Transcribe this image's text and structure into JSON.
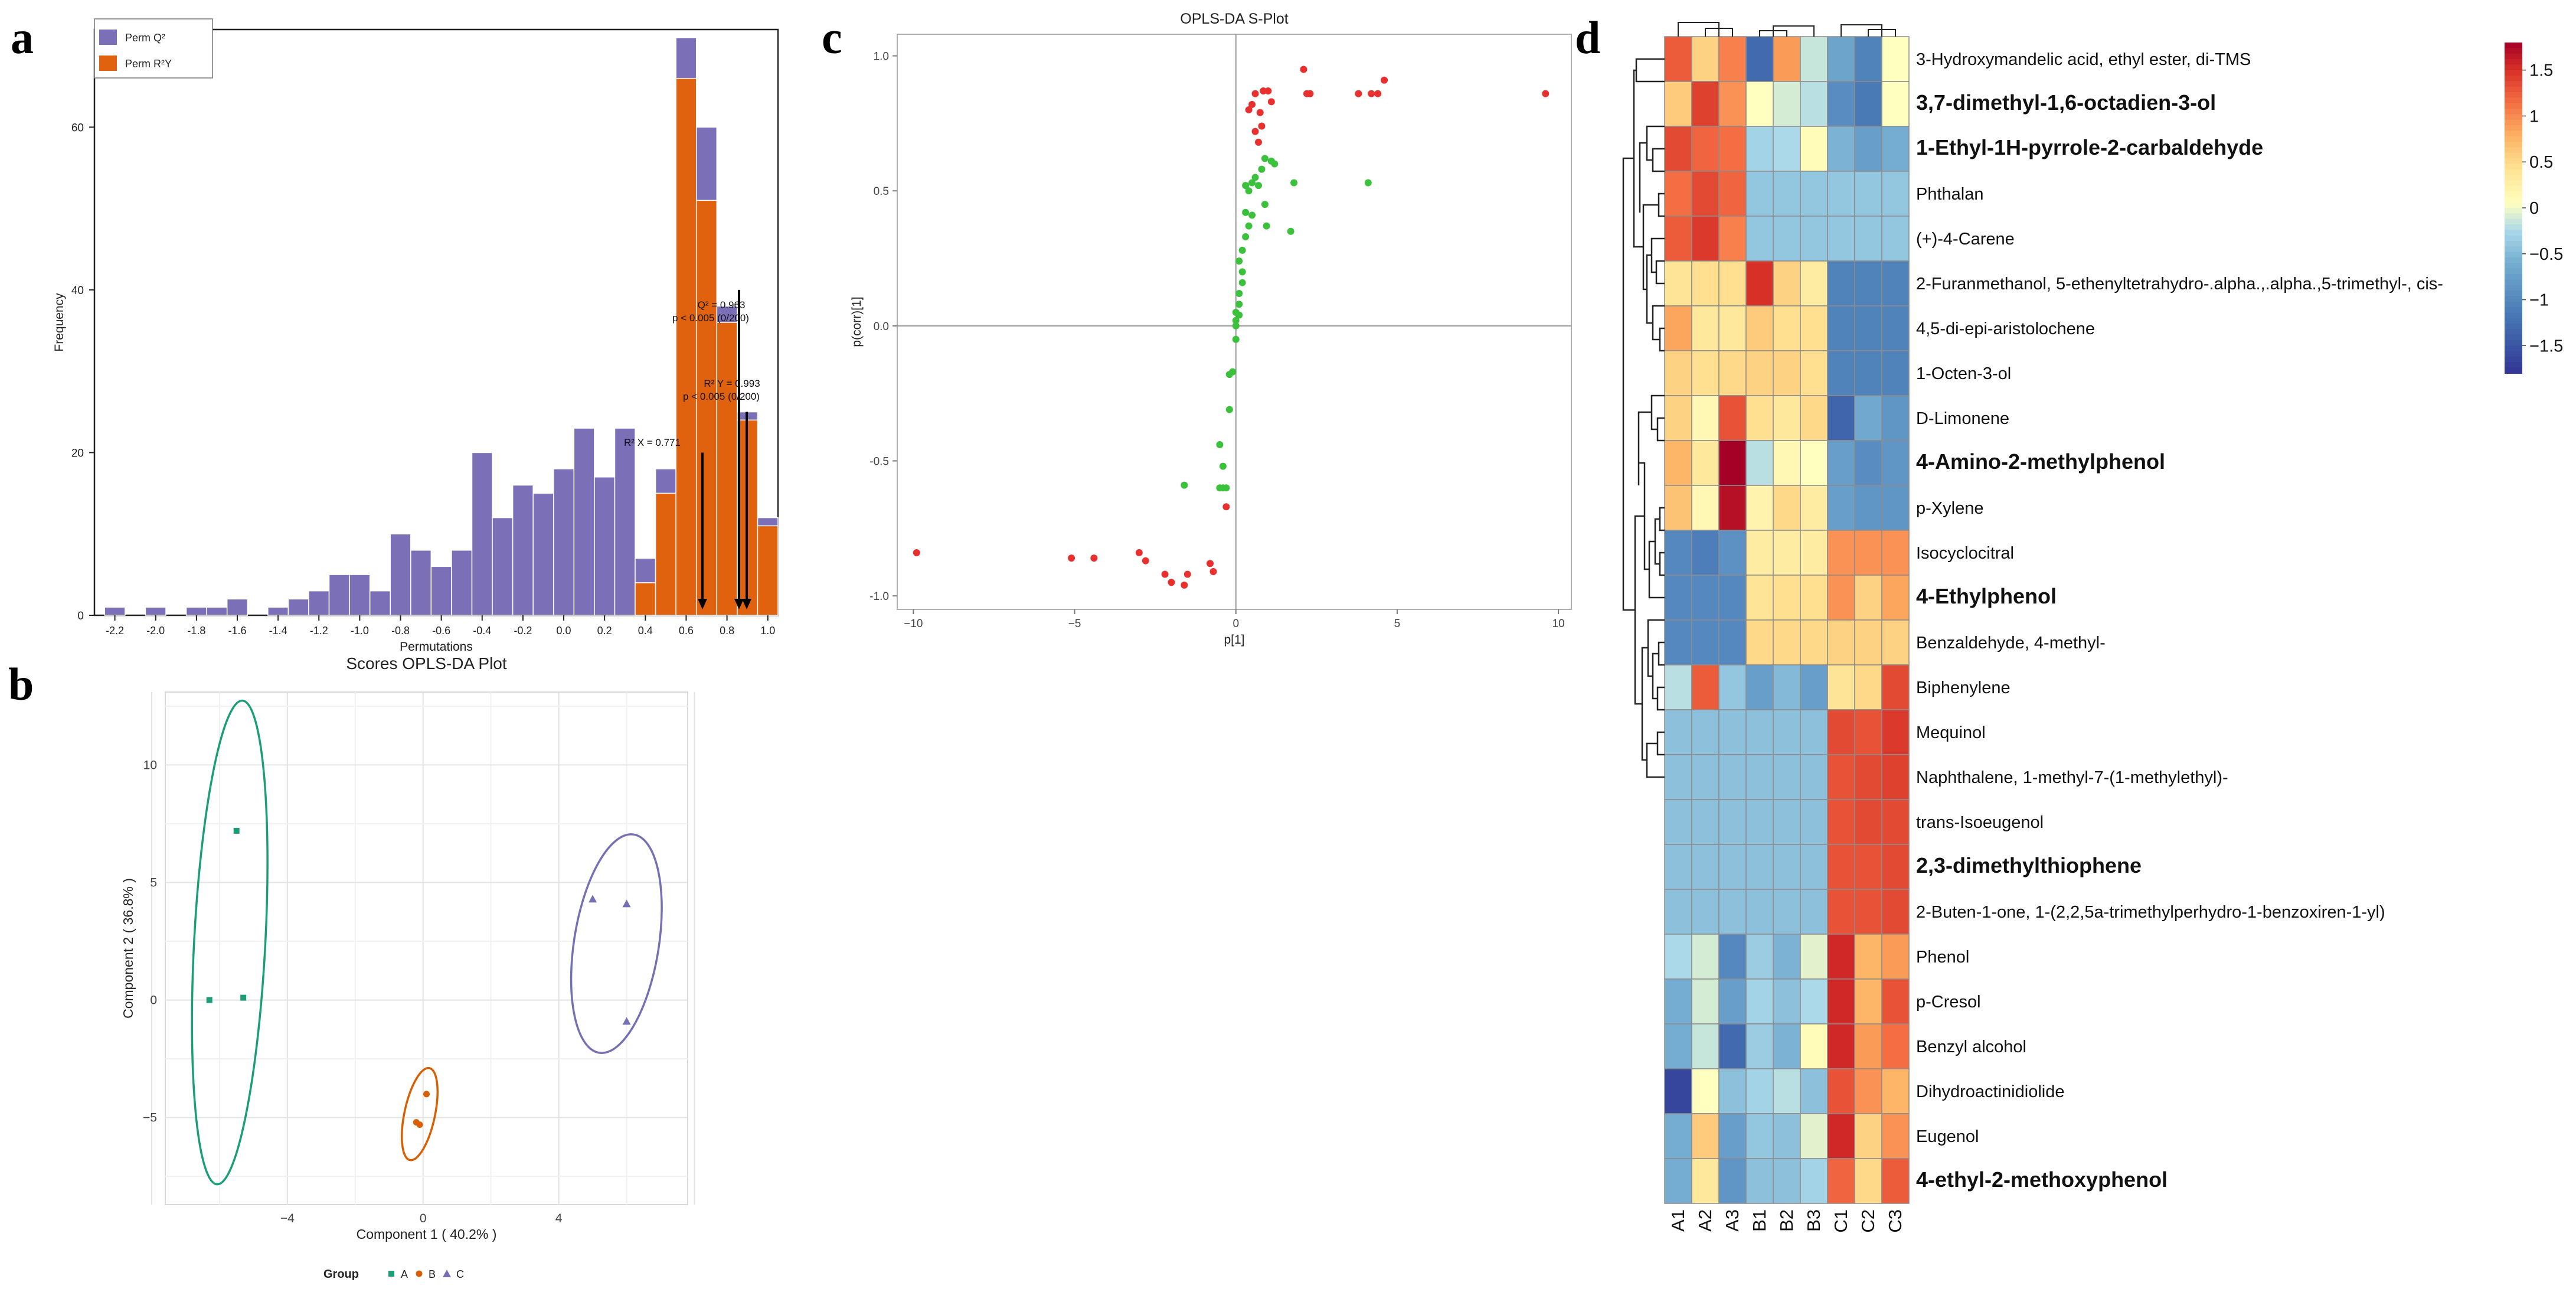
{
  "panels": {
    "a": "a",
    "b": "b",
    "c": "c",
    "d": "d"
  },
  "chart_data": [
    {
      "id": "a",
      "type": "bar",
      "subtype": "histogram",
      "xlabel": "Permutations",
      "ylabel": "Frequency",
      "xlim": [
        -2.3,
        1.05
      ],
      "ylim": [
        0,
        72
      ],
      "xticks": [
        "-2.2",
        "-2.0",
        "-1.8",
        "-1.6",
        "-1.4",
        "-1.2",
        "-1.0",
        "-0.8",
        "-0.6",
        "-0.4",
        "-0.2",
        "0.0",
        "0.2",
        "0.4",
        "0.6",
        "0.8",
        "1.0"
      ],
      "xtick_values": [
        -2.2,
        -2.0,
        -1.8,
        -1.6,
        -1.4,
        -1.2,
        -1.0,
        -0.8,
        -0.6,
        -0.4,
        -0.2,
        0.0,
        0.2,
        0.4,
        0.6,
        0.8,
        1.0
      ],
      "yticks": [
        0,
        20,
        40,
        60
      ],
      "bin_width": 0.1,
      "series": [
        {
          "name": "Perm Q²",
          "color": "#7b6fb8",
          "bins": [
            [
              -2.2,
              1
            ],
            [
              -2.0,
              1
            ],
            [
              -1.8,
              1
            ],
            [
              -1.7,
              1
            ],
            [
              -1.6,
              2
            ],
            [
              -1.4,
              1
            ],
            [
              -1.3,
              2
            ],
            [
              -1.2,
              3
            ],
            [
              -1.1,
              5
            ],
            [
              -1.0,
              5
            ],
            [
              -0.9,
              3
            ],
            [
              -0.8,
              10
            ],
            [
              -0.7,
              8
            ],
            [
              -0.6,
              6
            ],
            [
              -0.5,
              8
            ],
            [
              -0.4,
              20
            ],
            [
              -0.3,
              12
            ],
            [
              -0.2,
              16
            ],
            [
              -0.1,
              15
            ],
            [
              0.0,
              18
            ],
            [
              0.1,
              23
            ],
            [
              0.2,
              17
            ],
            [
              0.3,
              23
            ],
            [
              0.4,
              7
            ],
            [
              0.5,
              18
            ],
            [
              0.6,
              71
            ],
            [
              0.7,
              60
            ],
            [
              0.8,
              38
            ],
            [
              0.9,
              25
            ],
            [
              1.0,
              12
            ]
          ]
        },
        {
          "name": "Perm R²Y",
          "color": "#e0620f",
          "bins": [
            [
              0.4,
              4
            ],
            [
              0.5,
              15
            ],
            [
              0.6,
              66
            ],
            [
              0.7,
              51
            ],
            [
              0.8,
              36
            ],
            [
              0.9,
              24
            ],
            [
              1.0,
              11
            ]
          ]
        }
      ],
      "annotations": [
        {
          "line1": "Q² = 0.963",
          "line2": "p < 0.005 (0/200)",
          "x": 0.963,
          "top": 40
        },
        {
          "line1": "R² Y = 0.993",
          "line2": "p < 0.005 (0/200)",
          "x": 0.993,
          "top": 25
        },
        {
          "line1": "R² X = 0.771",
          "x": 0.771,
          "top": 20
        }
      ]
    },
    {
      "id": "b",
      "type": "scatter",
      "title": "Scores OPLS-DA Plot",
      "xlabel": "Component 1 ( 40.2% )",
      "ylabel": "Component 2 ( 36.8% )",
      "xlim": [
        -7.6,
        7.8
      ],
      "ylim": [
        -8.7,
        13.1
      ],
      "xticks": [
        -4,
        0,
        4
      ],
      "yticks": [
        -5,
        0,
        5,
        10
      ],
      "legend_title": "Group",
      "groups": [
        {
          "name": "A",
          "color": "#1b9e77",
          "marker": "square",
          "points": [
            [
              -5.5,
              7.2
            ],
            [
              -6.3,
              0.0
            ],
            [
              -5.3,
              0.1
            ]
          ],
          "ellipse": {
            "cx": -5.7,
            "cy": 2.45,
            "rx": 1.05,
            "ry": 10.3,
            "angle": 3
          }
        },
        {
          "name": "B",
          "color": "#d95f02",
          "marker": "circle",
          "points": [
            [
              0.1,
              -4.0
            ],
            [
              -0.1,
              -5.3
            ],
            [
              -0.2,
              -5.2
            ]
          ],
          "ellipse": {
            "cx": -0.1,
            "cy": -4.85,
            "rx": 0.45,
            "ry": 2.0,
            "angle": 12
          }
        },
        {
          "name": "C",
          "color": "#7570b3",
          "marker": "triangle",
          "points": [
            [
              5.0,
              4.3
            ],
            [
              6.0,
              4.1
            ],
            [
              6.0,
              -0.9
            ]
          ],
          "ellipse": {
            "cx": 5.7,
            "cy": 2.4,
            "rx": 1.25,
            "ry": 4.7,
            "angle": 9
          }
        }
      ]
    },
    {
      "id": "c",
      "type": "scatter",
      "title": "OPLS-DA S-Plot",
      "xlabel": "p[1]",
      "ylabel": "p(corr)[1]",
      "xlim": [
        -10.5,
        10.4
      ],
      "ylim": [
        -1.05,
        1.08
      ],
      "xticks": [
        -10,
        -5,
        0,
        5,
        10
      ],
      "yticks": [
        -1.0,
        -0.5,
        0.0,
        0.5,
        1.0
      ],
      "xtick_labels": [
        "−10",
        "−5",
        "0",
        "5",
        "10"
      ],
      "ytick_labels": [
        "-1.0",
        "-0.5",
        "0.0",
        "0.5",
        "1.0"
      ],
      "series": [
        {
          "name": "significant",
          "color": "#e8312f",
          "points": [
            [
              -9.9,
              -0.84
            ],
            [
              -5.1,
              -0.86
            ],
            [
              -4.4,
              -0.86
            ],
            [
              -3.0,
              -0.84
            ],
            [
              -2.8,
              -0.87
            ],
            [
              -2.2,
              -0.92
            ],
            [
              -2.0,
              -0.95
            ],
            [
              -1.6,
              -0.96
            ],
            [
              -1.5,
              -0.92
            ],
            [
              -0.8,
              -0.88
            ],
            [
              -0.7,
              -0.91
            ],
            [
              -0.3,
              -0.67
            ],
            [
              0.4,
              0.8
            ],
            [
              0.5,
              0.82
            ],
            [
              0.6,
              0.86
            ],
            [
              0.6,
              0.72
            ],
            [
              0.7,
              0.68
            ],
            [
              0.75,
              0.79
            ],
            [
              0.8,
              0.74
            ],
            [
              0.85,
              0.87
            ],
            [
              1.0,
              0.87
            ],
            [
              1.1,
              0.83
            ],
            [
              2.1,
              0.95
            ],
            [
              2.2,
              0.86
            ],
            [
              2.3,
              0.86
            ],
            [
              3.8,
              0.86
            ],
            [
              4.2,
              0.86
            ],
            [
              4.4,
              0.86
            ],
            [
              4.6,
              0.91
            ],
            [
              9.6,
              0.86
            ]
          ]
        },
        {
          "name": "not significant",
          "color": "#3cc13c",
          "points": [
            [
              -0.5,
              -0.44
            ],
            [
              -0.4,
              -0.52
            ],
            [
              -0.3,
              -0.6
            ],
            [
              -0.4,
              -0.6
            ],
            [
              -0.5,
              -0.6
            ],
            [
              -1.6,
              -0.59
            ],
            [
              -0.2,
              -0.31
            ],
            [
              -0.2,
              -0.18
            ],
            [
              -0.1,
              -0.17
            ],
            [
              0.0,
              -0.05
            ],
            [
              0.0,
              0.0
            ],
            [
              0.0,
              0.02
            ],
            [
              0.1,
              0.04
            ],
            [
              0.0,
              0.05
            ],
            [
              0.1,
              0.08
            ],
            [
              0.1,
              0.12
            ],
            [
              0.2,
              0.16
            ],
            [
              0.2,
              0.2
            ],
            [
              0.1,
              0.24
            ],
            [
              0.2,
              0.28
            ],
            [
              0.3,
              0.33
            ],
            [
              0.4,
              0.37
            ],
            [
              0.3,
              0.42
            ],
            [
              0.5,
              0.41
            ],
            [
              0.4,
              0.5
            ],
            [
              0.3,
              0.52
            ],
            [
              0.5,
              0.53
            ],
            [
              0.6,
              0.55
            ],
            [
              0.7,
              0.52
            ],
            [
              0.8,
              0.58
            ],
            [
              0.9,
              0.62
            ],
            [
              1.1,
              0.61
            ],
            [
              1.2,
              0.6
            ],
            [
              0.9,
              0.45
            ],
            [
              0.95,
              0.37
            ],
            [
              1.7,
              0.35
            ],
            [
              1.8,
              0.53
            ],
            [
              4.1,
              0.53
            ]
          ]
        }
      ]
    },
    {
      "id": "d",
      "type": "heatmap",
      "columns": [
        "A1",
        "A2",
        "A3",
        "B1",
        "B2",
        "B3",
        "C1",
        "C2",
        "C3"
      ],
      "rows": [
        {
          "label": "3-Hydroxymandelic acid, ethyl ester, di-TMS",
          "bold": false,
          "values": [
            1.25,
            0.55,
            1.05,
            -1.3,
            0.9,
            -0.15,
            -0.7,
            -1.05,
            0.05
          ]
        },
        {
          "label": "3,7-dimethyl-1,6-octadien-3-ol",
          "bold": true,
          "values": [
            0.6,
            1.4,
            0.95,
            0.05,
            -0.1,
            -0.2,
            -0.95,
            -1.15,
            0.05
          ]
        },
        {
          "label": "1-Ethyl-1H-pyrrole-2-carbaldehyde",
          "bold": true,
          "values": [
            1.35,
            1.2,
            1.15,
            -0.3,
            -0.25,
            0.1,
            -0.55,
            -0.75,
            -0.6
          ]
        },
        {
          "label": "Phthalan",
          "bold": false,
          "values": [
            1.15,
            1.35,
            1.2,
            -0.4,
            -0.4,
            -0.4,
            -0.4,
            -0.4,
            -0.4
          ]
        },
        {
          "label": "(+)-4-Carene",
          "bold": false,
          "values": [
            1.25,
            1.45,
            1.05,
            -0.4,
            -0.4,
            -0.4,
            -0.4,
            -0.4,
            -0.4
          ]
        },
        {
          "label": "2-Furanmethanol, 5-ethenyltetrahydro-.alpha.,.alpha.,5-trimethyl-, cis-",
          "bold": false,
          "values": [
            0.4,
            0.45,
            0.45,
            1.5,
            0.55,
            0.3,
            -1.05,
            -1.05,
            -1.05
          ]
        },
        {
          "label": "4,5-di-epi-aristolochene",
          "bold": false,
          "values": [
            0.85,
            0.35,
            0.35,
            0.6,
            0.45,
            0.45,
            -1.05,
            -1.05,
            -1.05
          ]
        },
        {
          "label": "1-Octen-3-ol",
          "bold": false,
          "values": [
            0.55,
            0.45,
            0.5,
            0.55,
            0.55,
            0.45,
            -1.05,
            -1.05,
            -1.05
          ]
        },
        {
          "label": "D-Limonene",
          "bold": false,
          "values": [
            0.55,
            0.15,
            1.3,
            0.45,
            0.35,
            0.5,
            -1.35,
            -0.65,
            -0.85
          ]
        },
        {
          "label": "4-Amino-2-methylphenol",
          "bold": true,
          "values": [
            0.75,
            0.35,
            1.8,
            -0.2,
            0.15,
            0.05,
            -0.75,
            -0.95,
            -0.85
          ]
        },
        {
          "label": "p-Xylene",
          "bold": false,
          "values": [
            0.65,
            0.15,
            1.7,
            0.2,
            0.5,
            0.3,
            -0.75,
            -0.85,
            -0.85
          ]
        },
        {
          "label": "Isocyclocitral",
          "bold": false,
          "values": [
            -1.0,
            -1.1,
            -0.9,
            0.3,
            0.3,
            0.3,
            0.95,
            0.95,
            0.95
          ]
        },
        {
          "label": "4-Ethylphenol",
          "bold": true,
          "values": [
            -1.0,
            -1.0,
            -1.0,
            0.4,
            0.45,
            0.45,
            0.95,
            0.55,
            0.85
          ]
        },
        {
          "label": "Benzaldehyde, 4-methyl-",
          "bold": false,
          "values": [
            -1.0,
            -1.0,
            -1.0,
            0.5,
            0.5,
            0.5,
            0.55,
            0.55,
            0.55
          ]
        },
        {
          "label": "Biphenylene",
          "bold": false,
          "values": [
            -0.2,
            1.25,
            -0.4,
            -0.75,
            -0.5,
            -0.75,
            0.4,
            0.5,
            1.35
          ]
        },
        {
          "label": "Mequinol",
          "bold": false,
          "values": [
            -0.45,
            -0.45,
            -0.45,
            -0.45,
            -0.45,
            -0.45,
            1.35,
            1.3,
            1.45
          ]
        },
        {
          "label": "Naphthalene, 1-methyl-7-(1-methylethyl)-",
          "bold": false,
          "values": [
            -0.45,
            -0.45,
            -0.45,
            -0.45,
            -0.45,
            -0.45,
            1.3,
            1.35,
            1.4
          ]
        },
        {
          "label": "trans-Isoeugenol",
          "bold": false,
          "values": [
            -0.45,
            -0.45,
            -0.45,
            -0.45,
            -0.45,
            -0.45,
            1.3,
            1.35,
            1.35
          ]
        },
        {
          "label": "2,3-dimethylthiophene",
          "bold": true,
          "values": [
            -0.45,
            -0.45,
            -0.45,
            -0.45,
            -0.45,
            -0.45,
            1.3,
            1.3,
            1.35
          ]
        },
        {
          "label": "2-Buten-1-one, 1-(2,2,5a-trimethylperhydro-1-benzoxiren-1-yl)",
          "bold": false,
          "values": [
            -0.45,
            -0.45,
            -0.45,
            -0.45,
            -0.45,
            -0.45,
            1.3,
            1.3,
            1.35
          ]
        },
        {
          "label": "Phenol",
          "bold": false,
          "values": [
            -0.25,
            -0.1,
            -1.0,
            -0.35,
            -0.55,
            -0.05,
            1.55,
            0.75,
            0.9
          ]
        },
        {
          "label": "p-Cresol",
          "bold": false,
          "values": [
            -0.6,
            -0.1,
            -0.75,
            -0.3,
            -0.45,
            -0.25,
            1.55,
            0.75,
            1.3
          ]
        },
        {
          "label": "Benzyl alcohol",
          "bold": false,
          "values": [
            -0.6,
            -0.15,
            -1.3,
            -0.35,
            -0.55,
            0.1,
            1.55,
            0.9,
            1.15
          ]
        },
        {
          "label": "Dihydroactinidiolide",
          "bold": false,
          "values": [
            -1.65,
            0.05,
            -0.45,
            -0.3,
            -0.2,
            -0.45,
            1.3,
            0.95,
            0.75
          ]
        },
        {
          "label": "Eugenol",
          "bold": false,
          "values": [
            -0.6,
            0.6,
            -0.75,
            -0.4,
            -0.45,
            -0.05,
            1.55,
            0.55,
            0.95
          ]
        },
        {
          "label": "4-ethyl-2-methoxyphenol",
          "bold": true,
          "values": [
            -0.6,
            0.35,
            -0.85,
            -0.45,
            -0.45,
            -0.3,
            1.2,
            0.5,
            1.25
          ]
        }
      ],
      "colorbar": {
        "min": -1.8,
        "max": 1.8,
        "ticks": [
          1.5,
          1,
          0.5,
          0,
          -0.5,
          -1,
          -1.5
        ],
        "tick_labels": [
          "1.5",
          "1",
          "0.5",
          "0",
          "−0.5",
          "−1",
          "−1.5"
        ]
      }
    }
  ]
}
